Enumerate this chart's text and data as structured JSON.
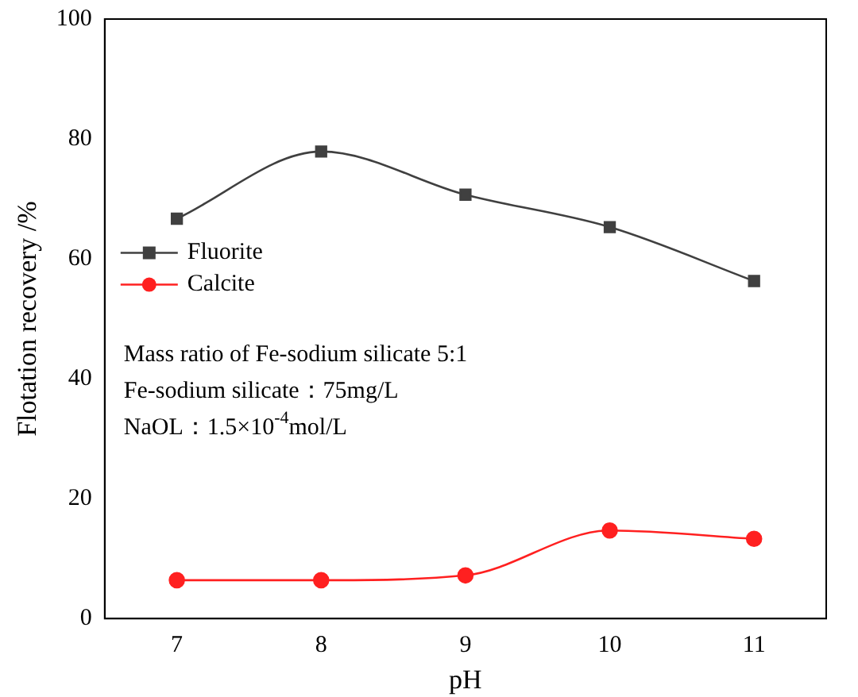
{
  "chart_data": {
    "type": "line",
    "xlabel": "pH",
    "ylabel": "Flotation recovery /%",
    "x": [
      7,
      8,
      9,
      10,
      11
    ],
    "series": [
      {
        "name": "Fluorite",
        "color": "#404040",
        "marker": "square",
        "values": [
          66.7,
          77.9,
          70.7,
          65.3,
          56.3
        ]
      },
      {
        "name": "Calcite",
        "color": "#ff2020",
        "marker": "circle",
        "values": [
          6.4,
          6.4,
          7.2,
          14.7,
          13.3
        ]
      }
    ],
    "xlim": [
      6.5,
      11.5
    ],
    "xticks": [
      7,
      8,
      9,
      10,
      11
    ],
    "ylim": [
      0,
      100
    ],
    "yticks": [
      0,
      20,
      40,
      60,
      80,
      100
    ],
    "grid": false,
    "legend": "left",
    "annotations": [
      "Mass ratio of Fe-sodium silicate 5:1",
      "Fe-sodium silicate：75mg/L",
      "NaOL：1.5×10$^{-4}$mol/L"
    ]
  }
}
